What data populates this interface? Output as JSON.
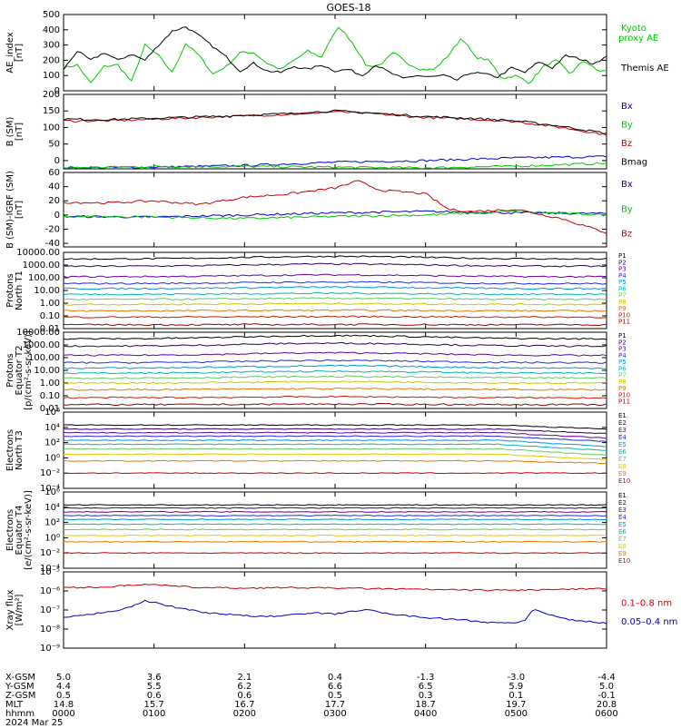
{
  "title": "GOES-18",
  "date": "2024 Mar 25",
  "chart_data": [
    {
      "type": "line",
      "id": "ae",
      "ylabel": [
        "AE_index",
        "[nT]"
      ],
      "ylim": [
        0,
        500
      ],
      "yticks": [
        "0",
        "100",
        "200",
        "300",
        "400",
        "500"
      ],
      "xlim": [
        0,
        6
      ],
      "xlabel": "hhmm",
      "legend_placement": "right",
      "series": [
        {
          "name": "Kyoto proxy AE",
          "color": "#00c800",
          "x": [
            0,
            0.15,
            0.3,
            0.45,
            0.6,
            0.75,
            0.9,
            1.05,
            1.2,
            1.35,
            1.5,
            1.65,
            1.8,
            1.95,
            2.1,
            2.25,
            2.4,
            2.55,
            2.7,
            2.85,
            2.95,
            3.05,
            3.2,
            3.35,
            3.5,
            3.65,
            3.8,
            3.95,
            4.1,
            4.25,
            4.4,
            4.55,
            4.7,
            4.85,
            5.0,
            5.15,
            5.3,
            5.45,
            5.6,
            5.75,
            5.9,
            6.0
          ],
          "y": [
            150,
            170,
            50,
            160,
            170,
            60,
            300,
            230,
            120,
            310,
            230,
            110,
            160,
            250,
            250,
            180,
            140,
            200,
            260,
            220,
            340,
            420,
            310,
            160,
            170,
            250,
            180,
            140,
            140,
            230,
            350,
            220,
            200,
            80,
            100,
            50,
            160,
            200,
            110,
            200,
            130,
            130
          ]
        },
        {
          "name": "Themis AE",
          "color": "#000000",
          "x": [
            0,
            0.15,
            0.3,
            0.45,
            0.6,
            0.75,
            0.9,
            1.05,
            1.2,
            1.35,
            1.5,
            1.65,
            1.8,
            1.95,
            2.1,
            2.25,
            2.4,
            2.55,
            2.7,
            2.85,
            3.0,
            3.15,
            3.3,
            3.45,
            3.6,
            3.75,
            3.9,
            4.05,
            4.2,
            4.35,
            4.5,
            4.65,
            4.8,
            4.95,
            5.1,
            5.25,
            5.4,
            5.55,
            5.7,
            5.85,
            6.0
          ],
          "y": [
            140,
            260,
            200,
            250,
            200,
            240,
            200,
            300,
            390,
            420,
            360,
            290,
            220,
            130,
            180,
            130,
            120,
            160,
            140,
            170,
            130,
            140,
            100,
            170,
            120,
            80,
            100,
            90,
            100,
            70,
            120,
            110,
            90,
            150,
            120,
            190,
            150,
            230,
            210,
            180,
            220
          ]
        }
      ]
    },
    {
      "type": "line",
      "id": "bsm",
      "ylabel": [
        "B (SM)",
        "[nT]"
      ],
      "ylim": [
        -25,
        200
      ],
      "yticks": [
        "-50",
        "0",
        "50",
        "100",
        "150",
        "200"
      ],
      "xlim": [
        0,
        6
      ],
      "xlabel": "hhmm",
      "series": [
        {
          "name": "Bx",
          "color": "#0000c8",
          "x": [
            0,
            1,
            2,
            3,
            4,
            5,
            6
          ],
          "y": [
            -22,
            -20,
            -15,
            -5,
            0,
            8,
            12
          ]
        },
        {
          "name": "By",
          "color": "#00c800",
          "x": [
            0,
            1,
            2,
            3,
            4,
            5,
            6
          ],
          "y": [
            -22,
            -18,
            -18,
            -20,
            -22,
            -17,
            -8
          ]
        },
        {
          "name": "Bz",
          "color": "#c80000",
          "x": [
            0,
            0.5,
            1,
            1.5,
            2,
            2.5,
            3,
            3.5,
            4,
            4.5,
            5,
            5.5,
            6
          ],
          "y": [
            120,
            120,
            125,
            130,
            135,
            140,
            148,
            140,
            130,
            125,
            118,
            100,
            78
          ]
        },
        {
          "name": "Bmag",
          "color": "#000000",
          "x": [
            0,
            0.5,
            1,
            1.5,
            2,
            2.5,
            3,
            3.5,
            4,
            4.5,
            5,
            5.5,
            6
          ],
          "y": [
            125,
            124,
            128,
            132,
            137,
            142,
            150,
            142,
            133,
            128,
            120,
            104,
            82
          ]
        }
      ]
    },
    {
      "type": "line",
      "id": "bigrf",
      "ylabel": [
        "B (SM)-IGRF (SM)",
        "[nT]"
      ],
      "ylim": [
        -45,
        60
      ],
      "yticks": [
        "-40",
        "-20",
        "0",
        "20",
        "40",
        "60"
      ],
      "xlim": [
        0,
        6
      ],
      "xlabel": "hhmm",
      "series": [
        {
          "name": "Bx",
          "color": "#0000c8",
          "x": [
            0,
            1,
            2,
            3,
            4,
            5,
            6
          ],
          "y": [
            -2,
            -3,
            0,
            3,
            5,
            3,
            2
          ]
        },
        {
          "name": "By",
          "color": "#00c800",
          "x": [
            0,
            1,
            2,
            3,
            4,
            5,
            6
          ],
          "y": [
            -2,
            -3,
            -5,
            -2,
            0,
            5,
            0
          ]
        },
        {
          "name": "Bz",
          "color": "#c80000",
          "x": [
            0,
            0.5,
            1,
            1.5,
            2,
            2.5,
            3,
            3.25,
            3.5,
            4,
            4.25,
            4.5,
            5,
            5.5,
            6
          ],
          "y": [
            18,
            17,
            20,
            15,
            25,
            30,
            38,
            48,
            35,
            30,
            8,
            5,
            8,
            -5,
            -25
          ]
        }
      ]
    },
    {
      "type": "line",
      "id": "pn",
      "ylabel": [
        "Protons",
        "North T1"
      ],
      "yscale": "log",
      "ylim": [
        0.01,
        10000
      ],
      "yticks": [
        "0.01",
        "0.10",
        "1.00",
        "10.00",
        "100.00",
        "1000.00",
        "10000.00"
      ],
      "xlim": [
        0,
        6
      ],
      "xlabel": "hhmm",
      "series": [
        {
          "name": "P1",
          "color": "#000000",
          "y": 3000,
          "bump": 1.6
        },
        {
          "name": "P2",
          "color": "#32005a",
          "y": 800,
          "bump": 1.5
        },
        {
          "name": "P3",
          "color": "#6400a0",
          "y": 120,
          "bump": 1.4
        },
        {
          "name": "P4",
          "color": "#2828dc",
          "y": 35,
          "bump": 1.3
        },
        {
          "name": "P5",
          "color": "#0096dc",
          "y": 14,
          "bump": 1.3
        },
        {
          "name": "P6",
          "color": "#00b4b4",
          "y": 5,
          "bump": 1.2
        },
        {
          "name": "P7",
          "color": "#64c864",
          "y": 2,
          "bump": 1.2
        },
        {
          "name": "P8",
          "color": "#c8c800",
          "y": 0.8,
          "bump": 1.15
        },
        {
          "name": "P9",
          "color": "#e67800",
          "y": 0.25,
          "bump": 1.1
        },
        {
          "name": "P10",
          "color": "#c81e00",
          "y": 0.08,
          "bump": 1.1
        },
        {
          "name": "P11",
          "color": "#a00000",
          "y": 0.02,
          "bump": 1.05
        }
      ]
    },
    {
      "type": "line",
      "id": "pe",
      "ylabel": [
        "Protons",
        "Equator T2",
        "[p/(cm²-s-sr-keV)]"
      ],
      "yscale": "log",
      "ylim": [
        0.01,
        10000
      ],
      "yticks": [
        "0.01",
        "0.10",
        "1.00",
        "10.00",
        "100.00",
        "1000.00",
        "10000.00"
      ],
      "xlim": [
        0,
        6
      ],
      "xlabel": "hhmm",
      "series": [
        {
          "name": "P1",
          "color": "#000000",
          "y": 3000,
          "bump": 1.8
        },
        {
          "name": "P2",
          "color": "#32005a",
          "y": 800,
          "bump": 1.7
        },
        {
          "name": "P3",
          "color": "#6400a0",
          "y": 150,
          "bump": 1.6
        },
        {
          "name": "P4",
          "color": "#2828dc",
          "y": 40,
          "bump": 1.5
        },
        {
          "name": "P5",
          "color": "#0096dc",
          "y": 15,
          "bump": 1.5
        },
        {
          "name": "P6",
          "color": "#00b4b4",
          "y": 6,
          "bump": 1.4
        },
        {
          "name": "P7",
          "color": "#64c864",
          "y": 2.5,
          "bump": 1.3
        },
        {
          "name": "P8",
          "color": "#c8c800",
          "y": 1,
          "bump": 1.3
        },
        {
          "name": "P9",
          "color": "#e67800",
          "y": 0.3,
          "bump": 1.2
        },
        {
          "name": "P10",
          "color": "#c81e00",
          "y": 0.07,
          "bump": 1.2
        },
        {
          "name": "P11",
          "color": "#a00000",
          "y": 0.02,
          "bump": 1.1
        }
      ]
    },
    {
      "type": "line",
      "id": "en",
      "ylabel": [
        "Electrons",
        "North T3"
      ],
      "yscale": "log",
      "ylim": [
        0.0001,
        1000000
      ],
      "yticks": [
        "10⁻⁴",
        "10⁻²",
        "10⁰",
        "10²",
        "10⁴",
        "10⁶"
      ],
      "xlim": [
        0,
        6
      ],
      "xlabel": "hhmm",
      "series": [
        {
          "name": "E1",
          "color": "#000000",
          "y": 20000,
          "drop": 0.3
        },
        {
          "name": "E2",
          "color": "#32005a",
          "y": 6000,
          "drop": 0.25
        },
        {
          "name": "E3",
          "color": "#6400a0",
          "y": 2000,
          "drop": 0.2
        },
        {
          "name": "E4",
          "color": "#2828dc",
          "y": 700,
          "drop": 0.2
        },
        {
          "name": "E5",
          "color": "#0096dc",
          "y": 200,
          "drop": 0.15
        },
        {
          "name": "E6",
          "color": "#00b4b4",
          "y": 60,
          "drop": 0.15
        },
        {
          "name": "E7",
          "color": "#64c864",
          "y": 15,
          "drop": 0.15
        },
        {
          "name": "E8",
          "color": "#e6c800",
          "y": 3,
          "drop": 0.2
        },
        {
          "name": "E9",
          "color": "#e67800",
          "y": 0.4,
          "drop": 0.5
        },
        {
          "name": "E10",
          "color": "#c80000",
          "y": 0.01,
          "drop": 1
        }
      ]
    },
    {
      "type": "line",
      "id": "ee",
      "ylabel": [
        "Electrons",
        "Equator T4",
        "[e/(cm²-s-sr-keV)]"
      ],
      "yscale": "log",
      "ylim": [
        0.0001,
        1000000
      ],
      "yticks": [
        "10⁻⁴",
        "10⁻²",
        "10⁰",
        "10²",
        "10⁴",
        "10⁶"
      ],
      "xlim": [
        0,
        6
      ],
      "xlabel": "hhmm",
      "series": [
        {
          "name": "E1",
          "color": "#000000",
          "y": 20000,
          "drop": 1
        },
        {
          "name": "E2",
          "color": "#32005a",
          "y": 8000,
          "drop": 1
        },
        {
          "name": "E3",
          "color": "#6400a0",
          "y": 2500,
          "drop": 1
        },
        {
          "name": "E4",
          "color": "#2828dc",
          "y": 800,
          "drop": 1
        },
        {
          "name": "E5",
          "color": "#0096dc",
          "y": 250,
          "drop": 1
        },
        {
          "name": "E6",
          "color": "#00b4b4",
          "y": 60,
          "drop": 1
        },
        {
          "name": "E7",
          "color": "#64c864",
          "y": 12,
          "drop": 1
        },
        {
          "name": "E8",
          "color": "#e6c800",
          "y": 2,
          "drop": 1
        },
        {
          "name": "E9",
          "color": "#e67800",
          "y": 0.3,
          "drop": 1
        },
        {
          "name": "E10",
          "color": "#c80000",
          "y": 0.01,
          "drop": 1
        }
      ]
    },
    {
      "type": "line",
      "id": "xray",
      "ylabel": [
        "Xray flux",
        "[W/m²]"
      ],
      "yscale": "log",
      "ylim": [
        1e-09,
        1e-05
      ],
      "yticks": [
        "10⁻⁹",
        "10⁻⁸",
        "10⁻⁷",
        "10⁻⁶",
        "10⁻⁵"
      ],
      "xlim": [
        0,
        6
      ],
      "xlabel": "hhmm",
      "series": [
        {
          "name": "0.1–0.8 nm",
          "color": "#c80000",
          "x": [
            0,
            0.5,
            0.9,
            1.2,
            1.5,
            2,
            2.5,
            3,
            3.5,
            4,
            4.5,
            5,
            5.5,
            6
          ],
          "y": [
            1.5e-06,
            1.6e-06,
            2.3e-06,
            1.8e-06,
            1.5e-06,
            1.4e-06,
            1.5e-06,
            1.4e-06,
            1.3e-06,
            1.2e-06,
            1.1e-06,
            1.1e-06,
            1.2e-06,
            1.3e-06
          ]
        },
        {
          "name": "0.05–0.4 nm",
          "color": "#0000c8",
          "x": [
            0,
            0.2,
            0.4,
            0.6,
            0.8,
            0.9,
            1.0,
            1.2,
            1.4,
            1.6,
            1.8,
            2.0,
            2.2,
            2.4,
            2.6,
            2.8,
            3.0,
            3.2,
            3.4,
            3.6,
            3.8,
            4.0,
            4.2,
            4.4,
            4.6,
            4.8,
            5.0,
            5.1,
            5.2,
            5.4,
            5.6,
            5.8,
            6.0
          ],
          "y": [
            4e-08,
            5e-08,
            7e-08,
            1e-07,
            1.8e-07,
            3e-07,
            2.5e-07,
            1.5e-07,
            1e-07,
            7e-08,
            6e-08,
            5e-08,
            4.5e-08,
            5e-08,
            6e-08,
            7e-08,
            6e-08,
            9e-08,
            1e-07,
            6e-08,
            5e-08,
            4e-08,
            3.5e-08,
            3e-08,
            2.5e-08,
            2e-08,
            2.2e-08,
            3e-08,
            1.2e-07,
            5e-08,
            3e-08,
            2.5e-08,
            2e-08
          ]
        }
      ]
    }
  ],
  "ephemeris": {
    "rows": [
      {
        "label": "X-GSM",
        "values": [
          "5.0",
          "3.6",
          "2.1",
          "0.4",
          "-1.3",
          "-3.0",
          "-4.4"
        ]
      },
      {
        "label": "Y-GSM",
        "values": [
          "4.4",
          "5.5",
          "6.2",
          "6.6",
          "6.5",
          "5.9",
          "5.0"
        ]
      },
      {
        "label": "Z-GSM",
        "values": [
          "0.5",
          "0.6",
          "0.6",
          "0.5",
          "0.3",
          "0.1",
          "-0.1"
        ]
      },
      {
        "label": "MLT",
        "values": [
          "14.8",
          "15.7",
          "16.7",
          "17.7",
          "18.7",
          "19.7",
          "20.8"
        ]
      },
      {
        "label": "hhmm",
        "values": [
          "0000",
          "0100",
          "0200",
          "0300",
          "0400",
          "0500",
          "0600"
        ]
      }
    ]
  }
}
